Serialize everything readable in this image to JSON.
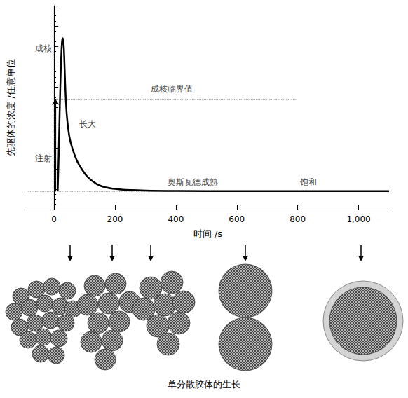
{
  "chart_data": {
    "type": "line",
    "x_label": "时间 /s",
    "y_label": "先驱体的浓度 /任意单位",
    "xlim": [
      -90,
      1100
    ],
    "xticks": [
      0,
      200,
      400,
      600,
      800,
      1000
    ],
    "ylim": [
      0,
      10
    ],
    "yticks": [
      0,
      1,
      2,
      3,
      4,
      5,
      6,
      7,
      8,
      9,
      10
    ],
    "tick_labels": "x",
    "grid": false,
    "color": "#000000",
    "line_style": "solid",
    "x": [
      12,
      15,
      18,
      22,
      26,
      29,
      32,
      35,
      38,
      42,
      50,
      60,
      75,
      90,
      110,
      140,
      170,
      220,
      300,
      400,
      600,
      800,
      1100
    ],
    "values": [
      0.9,
      2.5,
      4.5,
      6.8,
      8.2,
      8.4,
      8.0,
      6.8,
      5.6,
      4.6,
      3.6,
      3.0,
      2.4,
      2.0,
      1.6,
      1.25,
      1.08,
      0.98,
      0.93,
      0.91,
      0.9,
      0.9,
      0.9
    ],
    "reference_lines": [
      {
        "y": 5.4,
        "x": [
          0,
          800
        ],
        "line_style": "dotted"
      },
      {
        "y": 0.9,
        "x": [
          -90,
          1100
        ],
        "line_style": "dotted"
      }
    ],
    "annotations": [
      {
        "text": "成核",
        "x": -35,
        "y": 7.9
      },
      {
        "text": "注射",
        "x": -35,
        "y": 2.5,
        "arrow": {
          "x": 5,
          "y": [
            0.9,
            5.4
          ]
        }
      },
      {
        "text": "长大",
        "x": 110,
        "y": 4.2
      },
      {
        "text": "成核临界值",
        "x": 387,
        "y": 5.9
      },
      {
        "text": "奥斯瓦德成熟",
        "x": 456,
        "y": 1.35
      },
      {
        "text": "饱和",
        "x": 835,
        "y": 1.35
      }
    ],
    "caption": "单分散胶体的生长"
  }
}
